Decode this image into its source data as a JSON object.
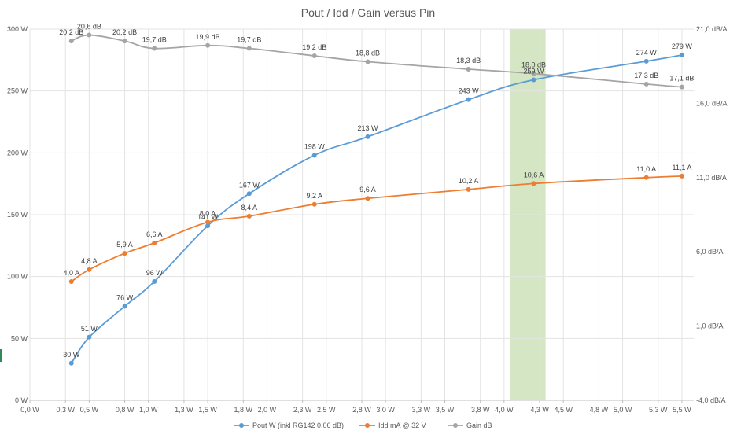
{
  "chart_data": {
    "type": "line",
    "title": "Pout / Idd / Gain versus Pin",
    "x": [
      0.35,
      0.5,
      0.8,
      1.05,
      1.5,
      1.85,
      2.4,
      2.85,
      3.7,
      4.25,
      5.2,
      5.5
    ],
    "xlim": [
      0,
      5.6
    ],
    "x_ticks": [
      0.0,
      0.3,
      0.5,
      0.8,
      1.0,
      1.3,
      1.5,
      1.8,
      2.0,
      2.3,
      2.5,
      2.8,
      3.0,
      3.3,
      3.5,
      3.8,
      4.0,
      4.3,
      4.5,
      4.8,
      5.0,
      5.3,
      5.5
    ],
    "x_tick_labels": [
      "0,0  W",
      "0,3  W",
      "0,5  W",
      "0,8  W",
      "1,0  W",
      "1,3  W",
      "1,5  W",
      "1,8  W",
      "2,0  W",
      "2,3  W",
      "2,5  W",
      "2,8  W",
      "3,0  W",
      "3,3  W",
      "3,5  W",
      "3,8  W",
      "4,0  W",
      "4,3  W",
      "4,5  W",
      "4,8  W",
      "5,0  W",
      "5,3  W",
      "5,5  W"
    ],
    "y_left": {
      "ylim": [
        0,
        300
      ],
      "ticks": [
        0,
        50,
        100,
        150,
        200,
        250,
        300
      ],
      "tick_labels": [
        "0  W",
        "50  W",
        "100  W",
        "150  W",
        "200  W",
        "250  W",
        "300  W"
      ]
    },
    "y_right": {
      "ylim": [
        -4,
        21
      ],
      "ticks": [
        -4,
        1,
        6,
        11,
        16,
        21
      ],
      "tick_labels": [
        "-4,0  dB/A",
        "1,0  dB/A",
        "6,0  dB/A",
        "11,0  dB/A",
        "16,0  dB/A",
        "21,0  dB/A"
      ]
    },
    "highlight_band": {
      "x_from": 4.05,
      "x_to": 4.35,
      "color": "#d4e6c3"
    },
    "grid": true,
    "legend_position": "bottom",
    "series": [
      {
        "name": "Pout W (inkl RG142 0,06 dB)",
        "axis": "left",
        "color": "#5b9bd5",
        "values": [
          30,
          51,
          76,
          96,
          141,
          167,
          198,
          213,
          243,
          259,
          274,
          279
        ],
        "labels": [
          "30  W",
          "51  W",
          "76  W",
          "96  W",
          "141  W",
          "167  W",
          "198  W",
          "213  W",
          "243  W",
          "259  W",
          "274  W",
          "279  W"
        ]
      },
      {
        "name": "Idd mA @ 32 V",
        "axis": "right",
        "color": "#ed7d31",
        "values": [
          4.0,
          4.8,
          5.9,
          6.6,
          8.0,
          8.4,
          9.2,
          9.6,
          10.2,
          10.6,
          11.0,
          11.1
        ],
        "labels": [
          "4,0  A",
          "4,8  A",
          "5,9  A",
          "6,6  A",
          "8,0  A",
          "8,4  A",
          "9,2  A",
          "9,6  A",
          "10,2  A",
          "10,6  A",
          "11,0  A",
          "11,1  A"
        ]
      },
      {
        "name": "Gain dB",
        "axis": "right",
        "color": "#a5a5a5",
        "values": [
          20.2,
          20.6,
          20.2,
          19.7,
          19.9,
          19.7,
          19.2,
          18.8,
          18.3,
          18.0,
          17.3,
          17.1
        ],
        "labels": [
          "20,2  dB",
          "20,6  dB",
          "20,2  dB",
          "19,7  dB",
          "19,9  dB",
          "19,7  dB",
          "19,2  dB",
          "18,8  dB",
          "18,3  dB",
          "18,0  dB",
          "17,3  dB",
          "17,1  dB"
        ]
      }
    ]
  }
}
